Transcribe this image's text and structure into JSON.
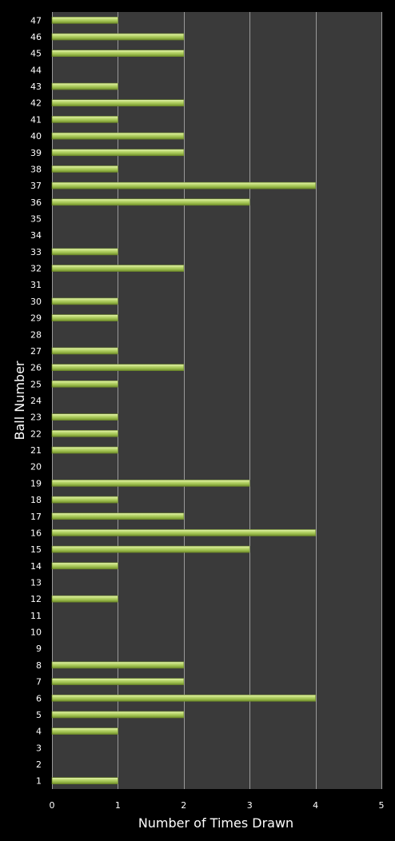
{
  "chart_data": {
    "type": "bar",
    "orientation": "horizontal",
    "title": "",
    "xlabel": "Number of Times Drawn",
    "ylabel": "Ball Number",
    "xlim": [
      0,
      5
    ],
    "x_ticks": [
      "0",
      "1",
      "2",
      "3",
      "4",
      "5"
    ],
    "grid": "vertical",
    "legend": "none",
    "colors": {
      "background": "#000000",
      "plot_area": "#3a3a3a",
      "grid": "#9a9a9a",
      "bar_fill": "#a8c85a",
      "bar_highlight": "#e0f0a8",
      "bar_edge": "#6e8a2a",
      "text": "#ffffff"
    },
    "categories": [
      "1",
      "2",
      "3",
      "4",
      "5",
      "6",
      "7",
      "8",
      "9",
      "10",
      "11",
      "12",
      "13",
      "14",
      "15",
      "16",
      "17",
      "18",
      "19",
      "20",
      "21",
      "22",
      "23",
      "24",
      "25",
      "26",
      "27",
      "28",
      "29",
      "30",
      "31",
      "32",
      "33",
      "34",
      "35",
      "36",
      "37",
      "38",
      "39",
      "40",
      "41",
      "42",
      "43",
      "44",
      "45",
      "46",
      "47"
    ],
    "values": [
      1,
      0,
      0,
      1,
      2,
      4,
      2,
      2,
      0,
      0,
      0,
      1,
      0,
      1,
      3,
      4,
      2,
      1,
      3,
      0,
      1,
      1,
      1,
      0,
      1,
      2,
      1,
      0,
      1,
      1,
      0,
      2,
      1,
      0,
      0,
      3,
      4,
      1,
      2,
      2,
      1,
      2,
      1,
      0,
      2,
      2,
      1
    ]
  }
}
